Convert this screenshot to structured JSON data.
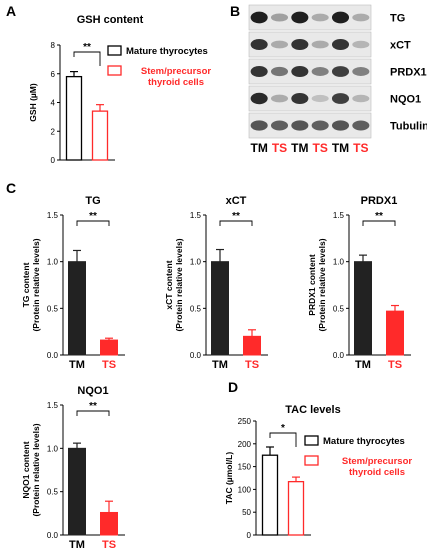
{
  "panels": {
    "A": "A",
    "B": "B",
    "C": "C",
    "D": "D"
  },
  "colors": {
    "mature": "#000000",
    "stem": "#ff2a2a",
    "dark_bar": "#222222"
  },
  "chart_data": [
    {
      "id": "gsh",
      "type": "bar",
      "title": "GSH content",
      "ylabel": "GSH (µM)",
      "ylim": [
        0,
        8
      ],
      "yticks": [
        "0",
        "2",
        "4",
        "6",
        "8"
      ],
      "categories": [],
      "series": [
        {
          "name": "Mature thyrocytes",
          "value": 5.8,
          "error": 0.35,
          "style": "open-black"
        },
        {
          "name": "Stem/precursor\nthyroid cells",
          "value": 3.4,
          "error": 0.45,
          "style": "open-red"
        }
      ],
      "significance": "**",
      "legend_position": "right"
    },
    {
      "id": "tg",
      "type": "bar",
      "title": "TG",
      "ylabel": "TG content\n(Protein relative levels)",
      "ylim": [
        0,
        1.5
      ],
      "yticks": [
        "0.0",
        "0.5",
        "1.0",
        "1.5"
      ],
      "categories": [
        "TM",
        "TS"
      ],
      "values": [
        1.0,
        0.16
      ],
      "errors": [
        0.12,
        0.02
      ],
      "significance": "**"
    },
    {
      "id": "xct",
      "type": "bar",
      "title": "xCT",
      "ylabel": "xCT content\n(Protein relative levels)",
      "ylim": [
        0,
        1.5
      ],
      "yticks": [
        "0.0",
        "0.5",
        "1.0",
        "1.5"
      ],
      "categories": [
        "TM",
        "TS"
      ],
      "values": [
        1.0,
        0.2
      ],
      "errors": [
        0.13,
        0.07
      ],
      "significance": "**"
    },
    {
      "id": "prdx1",
      "type": "bar",
      "title": "PRDX1",
      "ylabel": "PRDX1 content\n(Protein relative levels)",
      "ylim": [
        0,
        1.5
      ],
      "yticks": [
        "0.0",
        "0.5",
        "1.0",
        "1.5"
      ],
      "categories": [
        "TM",
        "TS"
      ],
      "values": [
        1.0,
        0.47
      ],
      "errors": [
        0.07,
        0.06
      ],
      "significance": "**"
    },
    {
      "id": "nqo1",
      "type": "bar",
      "title": "NQO1",
      "ylabel": "NQO1 content\n(Protein relative levels)",
      "ylim": [
        0,
        1.5
      ],
      "yticks": [
        "0.0",
        "0.5",
        "1.0",
        "1.5"
      ],
      "categories": [
        "TM",
        "TS"
      ],
      "values": [
        1.0,
        0.26
      ],
      "errors": [
        0.06,
        0.13
      ],
      "significance": "**"
    },
    {
      "id": "tac",
      "type": "bar",
      "title": "TAC levels",
      "ylabel": "TAC (µmol/L)",
      "ylim": [
        0,
        250
      ],
      "yticks": [
        "0",
        "50",
        "100",
        "150",
        "200",
        "250"
      ],
      "categories": [],
      "series": [
        {
          "name": "Mature thyrocytes",
          "value": 175,
          "error": 18,
          "style": "open-black"
        },
        {
          "name": "Stem/precursor\nthyroid cells",
          "value": 117,
          "error": 10,
          "style": "open-red"
        }
      ],
      "significance": "*",
      "legend_position": "right"
    }
  ],
  "western_blot": {
    "proteins": [
      "TG",
      "xCT",
      "PRDX1",
      "NQO1",
      "Tubulin"
    ],
    "lanes": [
      "TM",
      "TS",
      "TM",
      "TS",
      "TM",
      "TS"
    ],
    "intensities": [
      [
        0.95,
        0.35,
        0.95,
        0.3,
        0.95,
        0.3
      ],
      [
        0.85,
        0.3,
        0.85,
        0.3,
        0.85,
        0.25
      ],
      [
        0.85,
        0.55,
        0.85,
        0.5,
        0.8,
        0.5
      ],
      [
        0.9,
        0.3,
        0.85,
        0.2,
        0.8,
        0.25
      ],
      [
        0.7,
        0.65,
        0.7,
        0.65,
        0.7,
        0.65
      ]
    ]
  }
}
